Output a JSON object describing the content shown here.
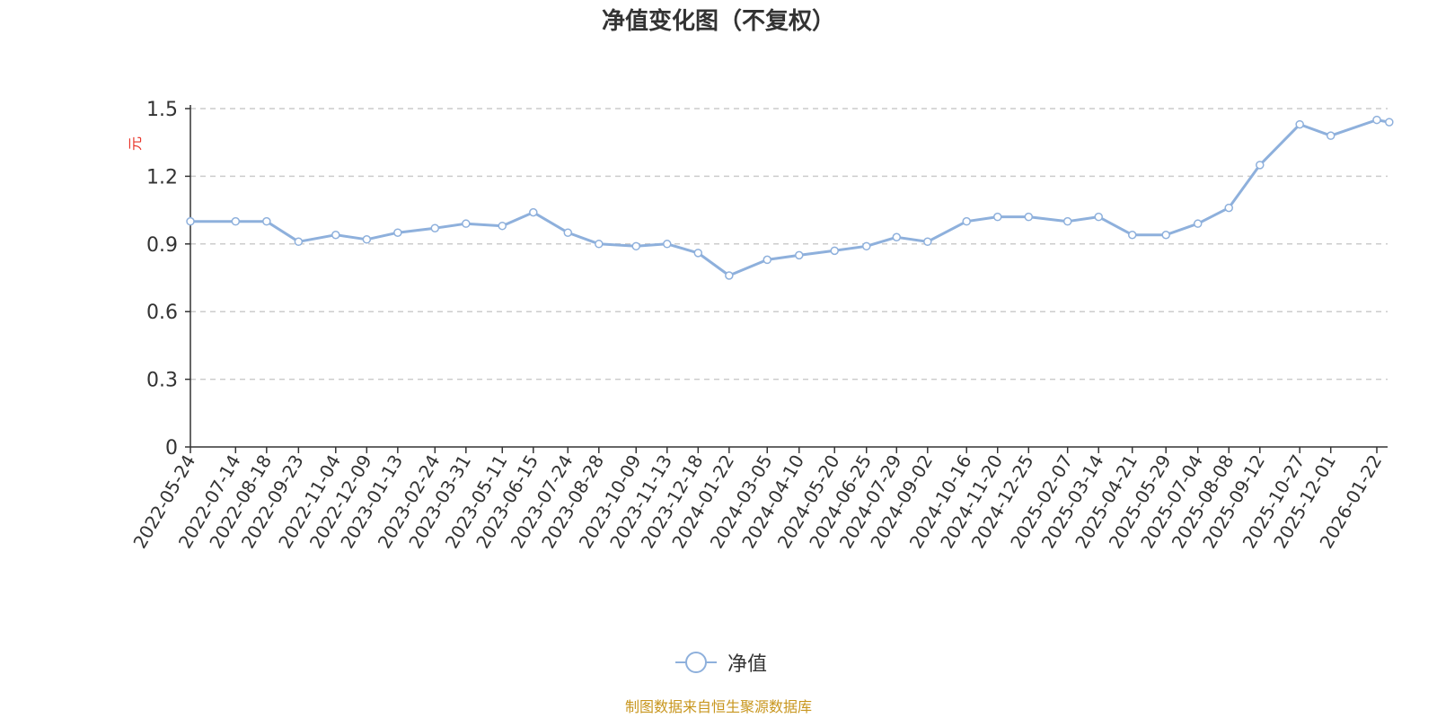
{
  "chart_data": {
    "type": "line",
    "title": "净值变化图（不复权）",
    "ylabel": "元",
    "xlabel": "",
    "ylim": [
      0,
      1.5
    ],
    "yticks": [
      0,
      0.3,
      0.6,
      0.9,
      1.2,
      1.5
    ],
    "ytick_labels": [
      "0",
      "0.3",
      "0.6",
      "0.9",
      "1.2",
      "1.5"
    ],
    "grid": "horizontal dashed",
    "legend": "bottom-center",
    "colors": {
      "line": "#8eb0dc",
      "ylabel": "#e8342a",
      "source": "#c8961e"
    },
    "x_tick_labels": [
      "2022-05-24",
      "2022-07-14",
      "2022-08-18",
      "2022-09-23",
      "2022-11-04",
      "2022-12-09",
      "2023-01-13",
      "2023-02-24",
      "2023-03-31",
      "2023-05-11",
      "2023-06-15",
      "2023-07-24",
      "2023-08-28",
      "2023-10-09",
      "2023-11-13",
      "2023-12-18",
      "2024-01-22",
      "2024-03-05",
      "2024-04-10",
      "2024-05-20",
      "2024-06-25",
      "2024-07-29",
      "2024-09-02",
      "2024-10-16",
      "2024-11-20",
      "2024-12-25",
      "2025-02-07",
      "2025-03-14",
      "2025-04-21",
      "2025-05-29",
      "2025-07-04",
      "2025-08-08",
      "2025-09-12",
      "2025-10-27",
      "2025-12-01",
      "2026-01-22"
    ],
    "series": [
      {
        "name": "净值",
        "x": [
          "2022-05-24",
          "2022-07-14",
          "2022-08-18",
          "2022-09-23",
          "2022-11-04",
          "2022-12-09",
          "2023-01-13",
          "2023-02-24",
          "2023-03-31",
          "2023-05-11",
          "2023-06-15",
          "2023-07-24",
          "2023-08-28",
          "2023-10-09",
          "2023-11-13",
          "2023-12-18",
          "2024-01-22",
          "2024-03-05",
          "2024-04-10",
          "2024-05-20",
          "2024-06-25",
          "2024-07-29",
          "2024-09-02",
          "2024-10-16",
          "2024-11-20",
          "2024-12-25",
          "2025-02-07",
          "2025-03-14",
          "2025-04-21",
          "2025-05-29",
          "2025-07-04",
          "2025-08-08",
          "2025-09-12",
          "2025-10-27",
          "2025-12-01",
          "2026-01-22",
          "2026-02-05"
        ],
        "values": [
          1.0,
          1.0,
          1.0,
          0.91,
          0.94,
          0.92,
          0.95,
          0.97,
          0.99,
          0.98,
          1.04,
          0.95,
          0.9,
          0.89,
          0.9,
          0.86,
          0.76,
          0.83,
          0.85,
          0.87,
          0.89,
          0.93,
          0.91,
          1.0,
          1.02,
          1.02,
          1.0,
          1.02,
          0.94,
          0.94,
          0.99,
          1.06,
          1.25,
          1.43,
          1.38,
          1.45,
          1.44
        ]
      }
    ]
  },
  "legend": {
    "label": "净值"
  },
  "footer": {
    "source": "制图数据来自恒生聚源数据库"
  }
}
